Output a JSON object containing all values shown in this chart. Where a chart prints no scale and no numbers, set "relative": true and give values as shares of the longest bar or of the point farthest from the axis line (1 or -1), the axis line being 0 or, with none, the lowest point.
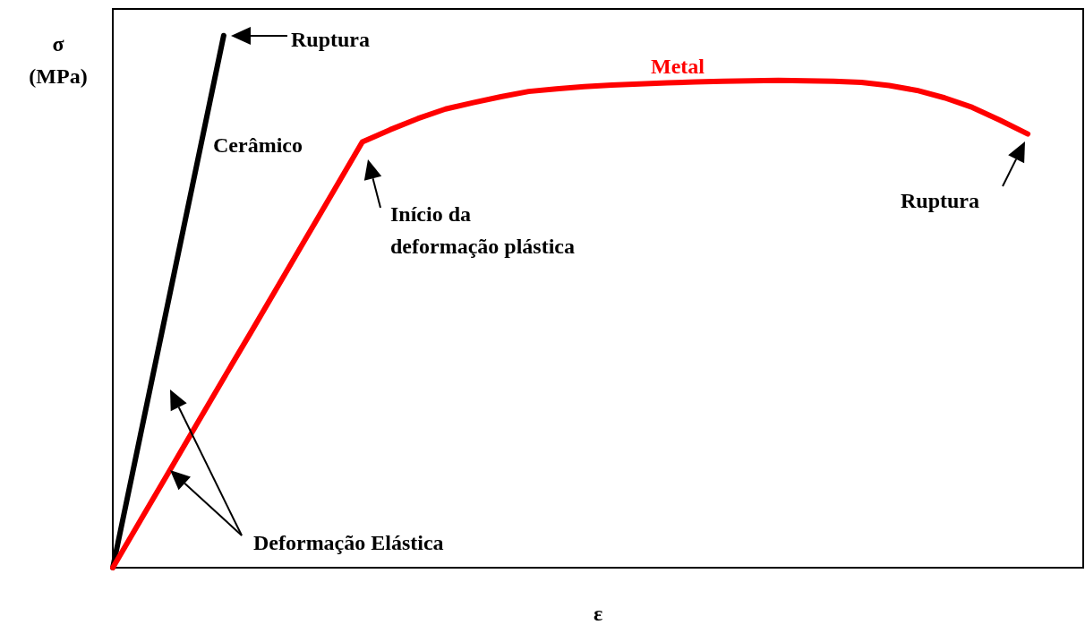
{
  "chart_data": {
    "type": "line",
    "relative": true,
    "xlabel": "ε",
    "ylabel": "σ (MPa)",
    "categories": [
      null,
      null,
      null,
      null,
      null,
      null,
      null,
      null,
      null,
      null,
      null,
      null,
      null,
      null,
      null,
      null,
      null,
      null,
      null,
      null,
      null,
      null,
      null,
      null,
      null,
      null,
      null,
      null,
      null,
      null,
      null,
      null,
      null,
      null,
      null,
      null
    ],
    "series": [
      {
        "name": "Cerâmico",
        "color": "#000000",
        "values": [
          0,
          0.25,
          0.5,
          0.75,
          1,
          null,
          null,
          null,
          null,
          null,
          null,
          null,
          null,
          null,
          null,
          null,
          null,
          null,
          null,
          null,
          null,
          null,
          null,
          null,
          null,
          null,
          null,
          null,
          null,
          null,
          null,
          null,
          null,
          null,
          null,
          null
        ]
      },
      {
        "name": "Metal",
        "color": "#ff0000",
        "values": [
          0,
          0.089,
          0.178,
          0.267,
          0.356,
          0.444,
          0.533,
          0.622,
          0.711,
          0.8,
          0.823,
          0.844,
          0.862,
          0.874,
          0.885,
          0.895,
          0.9,
          0.904,
          0.907,
          0.909,
          0.911,
          0.913,
          0.914,
          0.915,
          0.916,
          0.915,
          0.914,
          0.912,
          0.906,
          0.897,
          0.883,
          0.865,
          0.841,
          0.815,
          null,
          null
        ]
      }
    ],
    "annotations": [
      "Ruptura",
      "Início da deformação plástica",
      "Ruptura",
      "Deformação Elástica"
    ]
  }
}
